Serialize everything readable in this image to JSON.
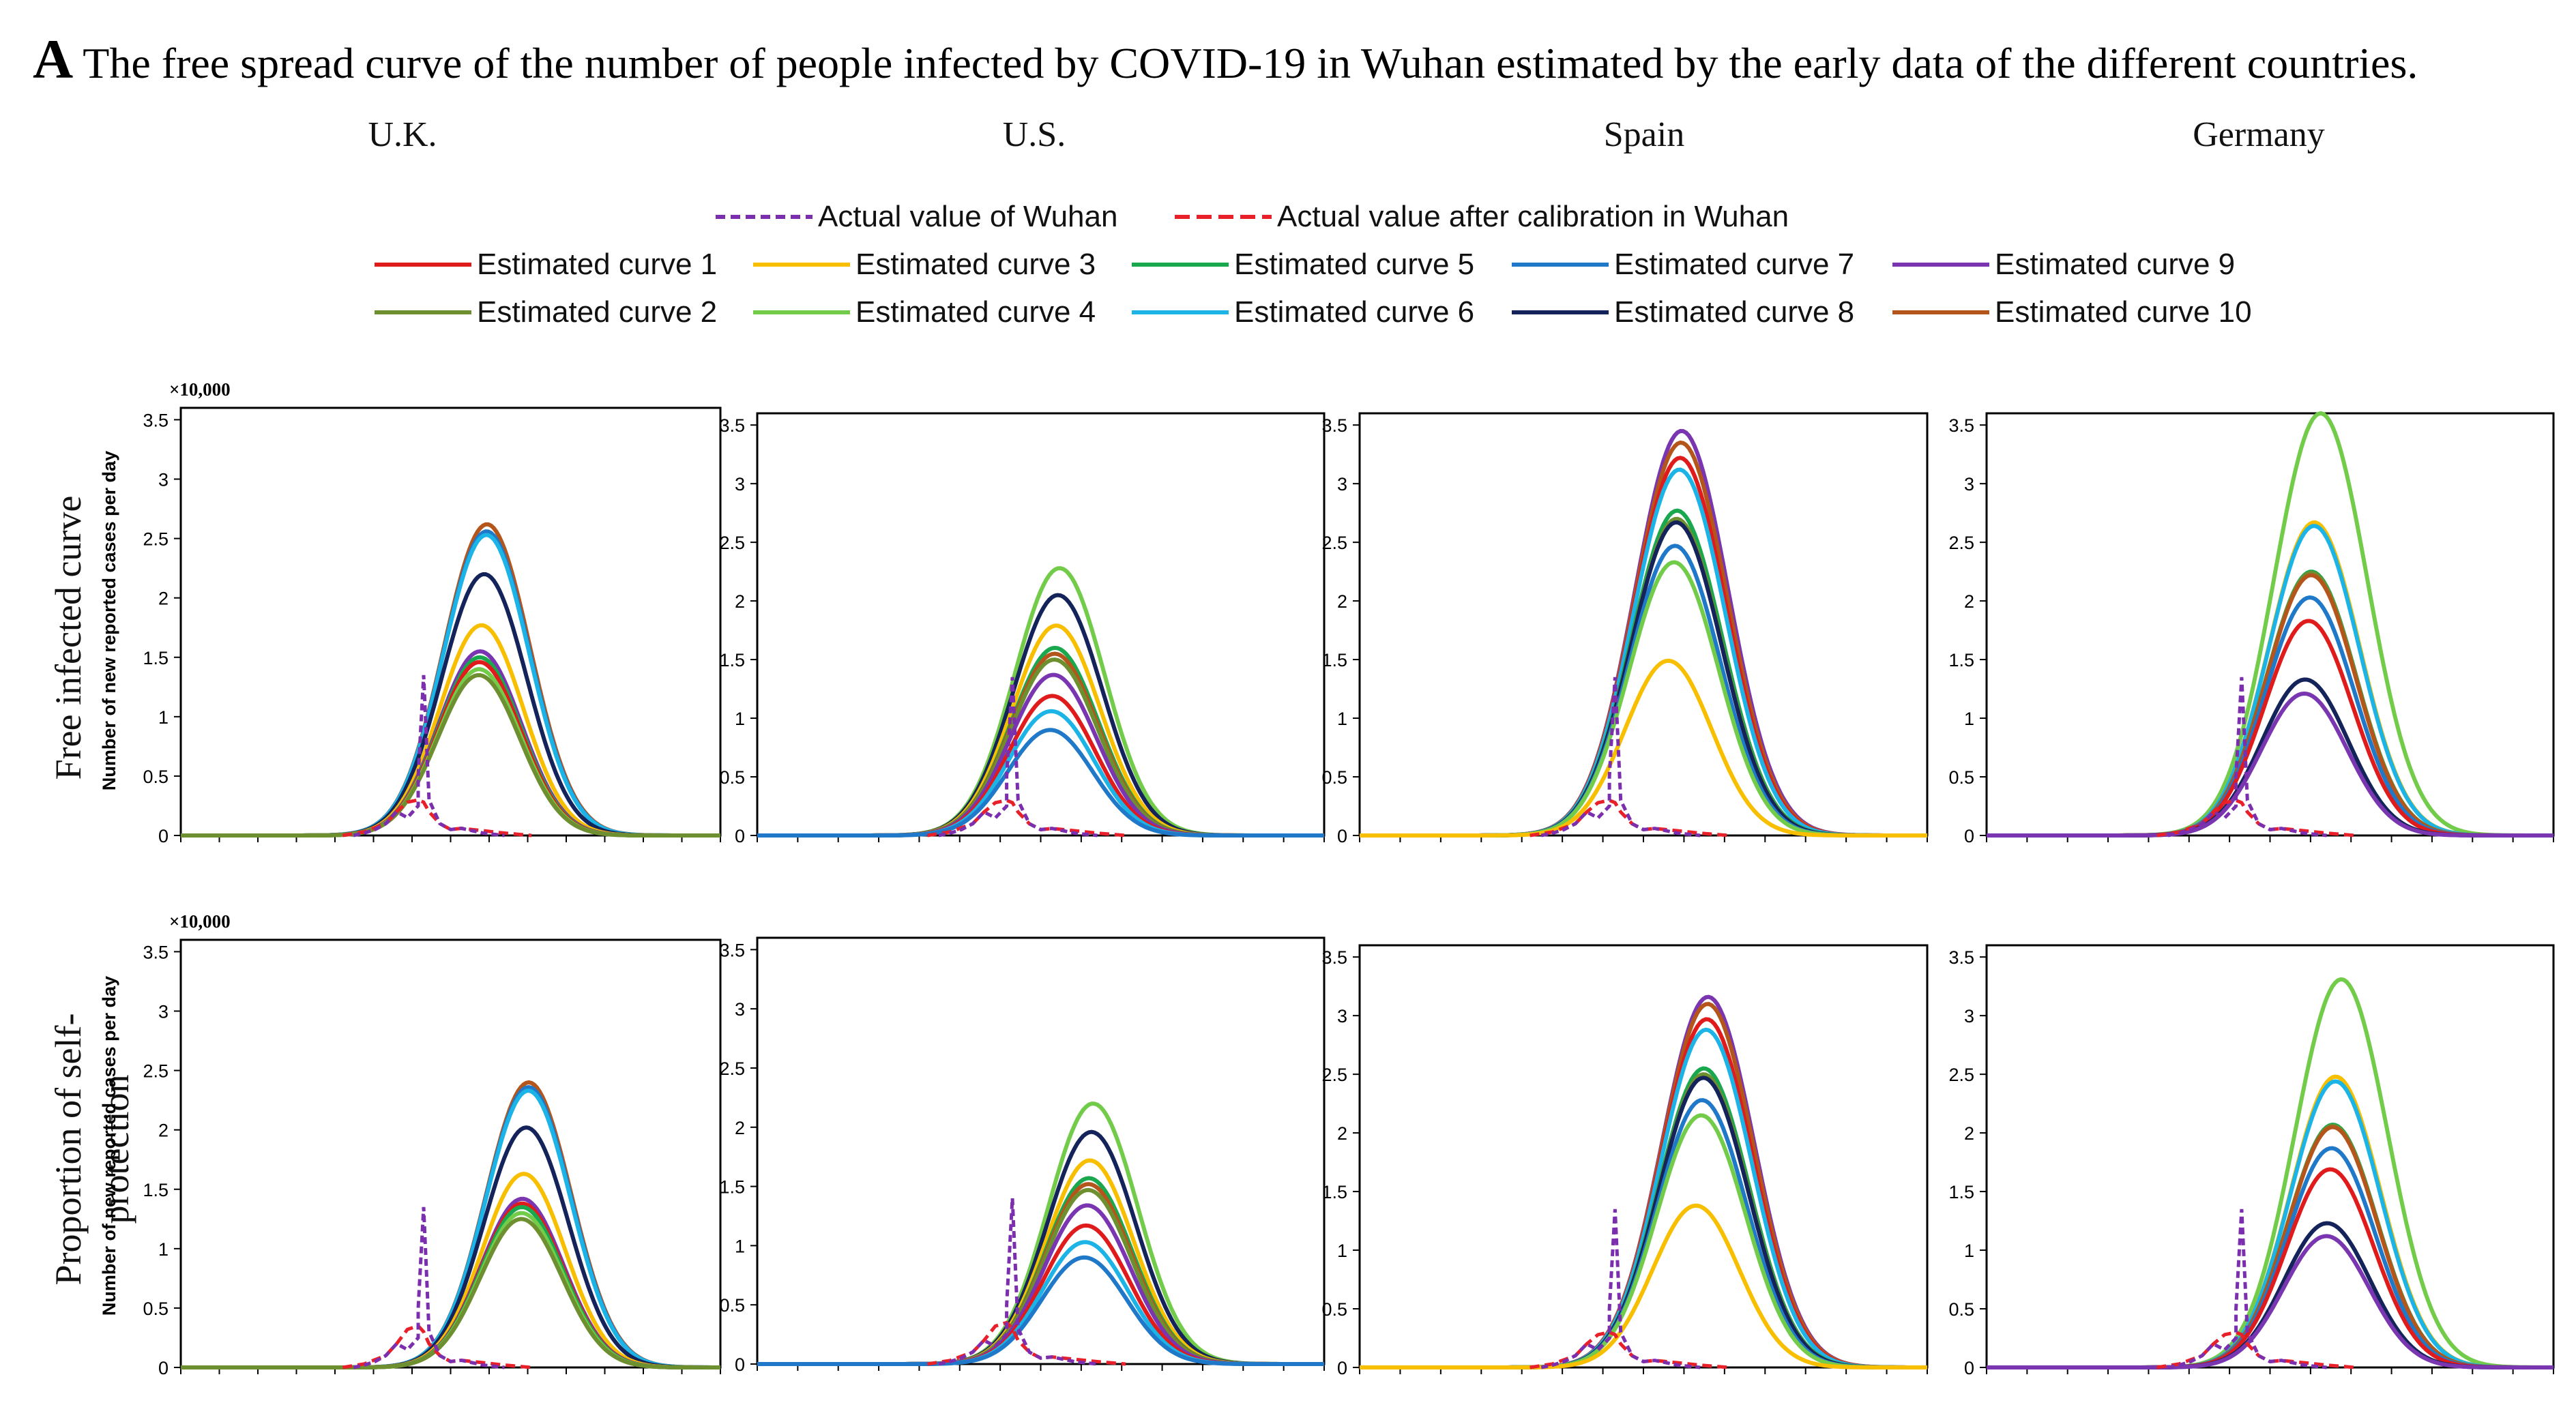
{
  "figure": {
    "panel_letter": "A",
    "title": "The free spread curve of the number of people infected by COVID-19 in Wuhan estimated by the early data of the different countries.",
    "countries": [
      "U.K.",
      "U.S.",
      "Spain",
      "Germany"
    ],
    "row_labels": [
      "Free infected curve",
      "Proportion of self-protection"
    ],
    "y_axis_label": "Number of new reported cases per day",
    "y_scale_label": "×10,000"
  },
  "legend": {
    "actual": [
      {
        "label": "Actual value of Wuhan",
        "color": "#7b2fae",
        "dash": "short"
      },
      {
        "label": "Actual value after calibration in Wuhan",
        "color": "#e8202a",
        "dash": "long"
      }
    ],
    "curves": [
      {
        "label": "Estimated curve 1",
        "color": "#e01b1b"
      },
      {
        "label": "Estimated curve 2",
        "color": "#6d8f2f"
      },
      {
        "label": "Estimated curve 3",
        "color": "#f8be00"
      },
      {
        "label": "Estimated curve 4",
        "color": "#72cc4a"
      },
      {
        "label": "Estimated curve 5",
        "color": "#1aa84e"
      },
      {
        "label": "Estimated curve 6",
        "color": "#1cb3e6"
      },
      {
        "label": "Estimated curve 7",
        "color": "#1f78c8"
      },
      {
        "label": "Estimated curve 8",
        "color": "#14235a"
      },
      {
        "label": "Estimated curve 9",
        "color": "#7a35b0"
      },
      {
        "label": "Estimated curve 10",
        "color": "#b4561b"
      }
    ]
  },
  "chart_data": [
    {
      "type": "line",
      "row": "Free infected curve",
      "country": "U.K.",
      "ylim": [
        0,
        3.6
      ],
      "yticks": [
        "0",
        "0.5",
        "1",
        "1.5",
        "2",
        "2.5",
        "3",
        "3.5"
      ],
      "peak_x": 0.56,
      "curve_peaks": [
        1.46,
        1.35,
        1.77,
        1.4,
        1.5,
        2.53,
        2.56,
        2.2,
        1.55,
        2.62
      ],
      "actual": {
        "x": [
          0.32,
          0.34,
          0.36,
          0.38,
          0.4,
          0.42,
          0.44,
          0.44,
          0.45,
          0.46,
          0.48,
          0.5,
          0.52,
          0.54,
          0.56,
          0.6
        ],
        "y": [
          0,
          0.02,
          0.05,
          0.1,
          0.2,
          0.15,
          0.25,
          0.5,
          1.35,
          0.3,
          0.1,
          0.05,
          0.06,
          0.04,
          0.02,
          0
        ]
      },
      "calibrated": {
        "x": [
          0.3,
          0.34,
          0.38,
          0.4,
          0.42,
          0.44,
          0.45,
          0.46,
          0.48,
          0.5,
          0.52,
          0.54,
          0.56,
          0.58,
          0.6,
          0.65
        ],
        "y": [
          0,
          0.03,
          0.1,
          0.2,
          0.28,
          0.3,
          0.28,
          0.2,
          0.1,
          0.05,
          0.06,
          0.05,
          0.04,
          0.03,
          0.02,
          0
        ]
      }
    },
    {
      "type": "line",
      "row": "Free infected curve",
      "country": "U.S.",
      "ylim": [
        0,
        3.6
      ],
      "yticks": [
        "0",
        "0.5",
        "1",
        "1.5",
        "2",
        "2.5",
        "3",
        "3.5"
      ],
      "peak_x": 0.53,
      "curve_peaks": [
        1.19,
        1.5,
        1.79,
        2.28,
        1.6,
        1.06,
        0.9,
        2.05,
        1.37,
        1.55
      ],
      "actual": {
        "x": [
          0.32,
          0.34,
          0.36,
          0.38,
          0.4,
          0.42,
          0.44,
          0.44,
          0.45,
          0.46,
          0.48,
          0.5,
          0.52,
          0.54,
          0.56,
          0.6
        ],
        "y": [
          0,
          0.02,
          0.05,
          0.1,
          0.2,
          0.15,
          0.25,
          0.5,
          1.35,
          0.3,
          0.1,
          0.05,
          0.06,
          0.04,
          0.02,
          0
        ]
      },
      "calibrated": {
        "x": [
          0.3,
          0.34,
          0.38,
          0.4,
          0.42,
          0.44,
          0.45,
          0.46,
          0.48,
          0.5,
          0.52,
          0.54,
          0.56,
          0.58,
          0.6,
          0.65
        ],
        "y": [
          0,
          0.03,
          0.1,
          0.2,
          0.28,
          0.3,
          0.28,
          0.2,
          0.1,
          0.05,
          0.06,
          0.05,
          0.04,
          0.03,
          0.02,
          0
        ]
      }
    },
    {
      "type": "line",
      "row": "Free infected curve",
      "country": "Spain",
      "ylim": [
        0,
        3.6
      ],
      "yticks": [
        "0",
        "0.5",
        "1",
        "1.5",
        "2",
        "2.5",
        "3",
        "3.5"
      ],
      "peak_x": 0.55,
      "curve_peaks": [
        3.22,
        2.7,
        1.49,
        2.33,
        2.77,
        3.12,
        2.47,
        2.67,
        3.45,
        3.35
      ],
      "actual": {
        "x": [
          0.32,
          0.34,
          0.36,
          0.38,
          0.4,
          0.42,
          0.44,
          0.44,
          0.45,
          0.46,
          0.48,
          0.5,
          0.52,
          0.54,
          0.56,
          0.6
        ],
        "y": [
          0,
          0.02,
          0.05,
          0.1,
          0.2,
          0.15,
          0.25,
          0.5,
          1.35,
          0.3,
          0.1,
          0.05,
          0.06,
          0.04,
          0.02,
          0
        ]
      },
      "calibrated": {
        "x": [
          0.3,
          0.34,
          0.38,
          0.4,
          0.42,
          0.44,
          0.45,
          0.46,
          0.48,
          0.5,
          0.52,
          0.54,
          0.56,
          0.58,
          0.6,
          0.65
        ],
        "y": [
          0,
          0.03,
          0.1,
          0.2,
          0.28,
          0.3,
          0.28,
          0.2,
          0.1,
          0.05,
          0.06,
          0.05,
          0.04,
          0.03,
          0.02,
          0
        ]
      }
    },
    {
      "type": "line",
      "row": "Free infected curve",
      "country": "Germany",
      "ylim": [
        0,
        3.6
      ],
      "yticks": [
        "0",
        "0.5",
        "1",
        "1.5",
        "2",
        "2.5",
        "3",
        "3.5"
      ],
      "peak_x": 0.57,
      "curve_peaks": [
        1.83,
        2.24,
        2.67,
        3.6,
        2.25,
        2.64,
        2.03,
        1.33,
        1.21,
        2.22
      ],
      "actual": {
        "x": [
          0.32,
          0.34,
          0.36,
          0.38,
          0.4,
          0.42,
          0.44,
          0.44,
          0.45,
          0.46,
          0.48,
          0.5,
          0.52,
          0.54,
          0.56,
          0.6
        ],
        "y": [
          0,
          0.02,
          0.05,
          0.1,
          0.2,
          0.15,
          0.25,
          0.5,
          1.35,
          0.3,
          0.1,
          0.05,
          0.06,
          0.04,
          0.02,
          0
        ]
      },
      "calibrated": {
        "x": [
          0.3,
          0.34,
          0.38,
          0.4,
          0.42,
          0.44,
          0.45,
          0.46,
          0.48,
          0.5,
          0.52,
          0.54,
          0.56,
          0.58,
          0.6,
          0.65
        ],
        "y": [
          0,
          0.03,
          0.1,
          0.2,
          0.28,
          0.3,
          0.28,
          0.2,
          0.1,
          0.05,
          0.06,
          0.05,
          0.04,
          0.03,
          0.02,
          0
        ]
      }
    },
    {
      "type": "line",
      "row": "Proportion of self-protection",
      "country": "U.K.",
      "ylim": [
        0,
        3.6
      ],
      "yticks": [
        "0",
        "0.5",
        "1",
        "1.5",
        "2",
        "2.5",
        "3",
        "3.5"
      ],
      "peak_x": 0.64,
      "curve_peaks": [
        1.38,
        1.25,
        1.63,
        1.3,
        1.35,
        2.33,
        2.36,
        2.02,
        1.42,
        2.4
      ],
      "actual": {
        "x": [
          0.32,
          0.34,
          0.36,
          0.38,
          0.4,
          0.42,
          0.44,
          0.44,
          0.45,
          0.46,
          0.48,
          0.5,
          0.52,
          0.54,
          0.56,
          0.6
        ],
        "y": [
          0,
          0.02,
          0.05,
          0.1,
          0.2,
          0.15,
          0.25,
          0.5,
          1.35,
          0.3,
          0.1,
          0.05,
          0.06,
          0.04,
          0.02,
          0
        ]
      },
      "calibrated": {
        "x": [
          0.3,
          0.34,
          0.38,
          0.4,
          0.42,
          0.44,
          0.45,
          0.46,
          0.48,
          0.5,
          0.52,
          0.54,
          0.56,
          0.58,
          0.6,
          0.65
        ],
        "y": [
          0,
          0.03,
          0.1,
          0.2,
          0.32,
          0.35,
          0.3,
          0.2,
          0.1,
          0.05,
          0.06,
          0.05,
          0.04,
          0.03,
          0.02,
          0
        ]
      }
    },
    {
      "type": "line",
      "row": "Proportion of self-protection",
      "country": "U.S.",
      "ylim": [
        0,
        3.6
      ],
      "yticks": [
        "0",
        "0.5",
        "1",
        "1.5",
        "2",
        "2.5",
        "3",
        "3.5"
      ],
      "peak_x": 0.59,
      "curve_peaks": [
        1.17,
        1.47,
        1.72,
        2.2,
        1.57,
        1.03,
        0.9,
        1.96,
        1.34,
        1.52
      ],
      "actual": {
        "x": [
          0.32,
          0.34,
          0.36,
          0.38,
          0.4,
          0.42,
          0.44,
          0.44,
          0.45,
          0.46,
          0.48,
          0.5,
          0.52,
          0.54,
          0.56,
          0.6
        ],
        "y": [
          0,
          0.02,
          0.05,
          0.1,
          0.2,
          0.15,
          0.25,
          0.5,
          1.4,
          0.3,
          0.1,
          0.05,
          0.06,
          0.04,
          0.02,
          0
        ]
      },
      "calibrated": {
        "x": [
          0.3,
          0.34,
          0.38,
          0.4,
          0.42,
          0.44,
          0.45,
          0.46,
          0.48,
          0.5,
          0.52,
          0.54,
          0.56,
          0.58,
          0.6,
          0.65
        ],
        "y": [
          0,
          0.03,
          0.1,
          0.2,
          0.32,
          0.35,
          0.3,
          0.2,
          0.1,
          0.05,
          0.06,
          0.05,
          0.04,
          0.03,
          0.02,
          0
        ]
      }
    },
    {
      "type": "line",
      "row": "Proportion of self-protection",
      "country": "Spain",
      "ylim": [
        0,
        3.6
      ],
      "yticks": [
        "0",
        "0.5",
        "1",
        "1.5",
        "2",
        "2.5",
        "3",
        "3.5"
      ],
      "peak_x": 0.6,
      "curve_peaks": [
        2.97,
        2.5,
        1.38,
        2.15,
        2.55,
        2.88,
        2.28,
        2.47,
        3.16,
        3.1
      ],
      "actual": {
        "x": [
          0.32,
          0.34,
          0.36,
          0.38,
          0.4,
          0.42,
          0.44,
          0.44,
          0.45,
          0.46,
          0.48,
          0.5,
          0.52,
          0.54,
          0.56,
          0.6
        ],
        "y": [
          0,
          0.02,
          0.05,
          0.1,
          0.2,
          0.15,
          0.25,
          0.5,
          1.35,
          0.3,
          0.1,
          0.05,
          0.06,
          0.04,
          0.02,
          0
        ]
      },
      "calibrated": {
        "x": [
          0.3,
          0.34,
          0.38,
          0.4,
          0.42,
          0.44,
          0.45,
          0.46,
          0.48,
          0.5,
          0.52,
          0.54,
          0.56,
          0.58,
          0.6,
          0.65
        ],
        "y": [
          0,
          0.03,
          0.1,
          0.2,
          0.28,
          0.3,
          0.28,
          0.2,
          0.1,
          0.05,
          0.06,
          0.05,
          0.04,
          0.03,
          0.02,
          0
        ]
      }
    },
    {
      "type": "line",
      "row": "Proportion of self-protection",
      "country": "Germany",
      "ylim": [
        0,
        3.6
      ],
      "yticks": [
        "0",
        "0.5",
        "1",
        "1.5",
        "2",
        "2.5",
        "3",
        "3.5"
      ],
      "peak_x": 0.61,
      "curve_peaks": [
        1.69,
        2.06,
        2.48,
        3.31,
        2.07,
        2.44,
        1.87,
        1.23,
        1.12,
        2.05
      ],
      "actual": {
        "x": [
          0.32,
          0.34,
          0.36,
          0.38,
          0.4,
          0.42,
          0.44,
          0.44,
          0.45,
          0.46,
          0.48,
          0.5,
          0.52,
          0.54,
          0.56,
          0.6
        ],
        "y": [
          0,
          0.02,
          0.05,
          0.1,
          0.2,
          0.15,
          0.25,
          0.5,
          1.35,
          0.3,
          0.1,
          0.05,
          0.06,
          0.04,
          0.02,
          0
        ]
      },
      "calibrated": {
        "x": [
          0.3,
          0.34,
          0.38,
          0.4,
          0.42,
          0.44,
          0.45,
          0.46,
          0.48,
          0.5,
          0.52,
          0.54,
          0.56,
          0.58,
          0.6,
          0.65
        ],
        "y": [
          0,
          0.03,
          0.1,
          0.2,
          0.28,
          0.3,
          0.28,
          0.2,
          0.1,
          0.05,
          0.06,
          0.05,
          0.04,
          0.03,
          0.02,
          0
        ]
      }
    }
  ]
}
